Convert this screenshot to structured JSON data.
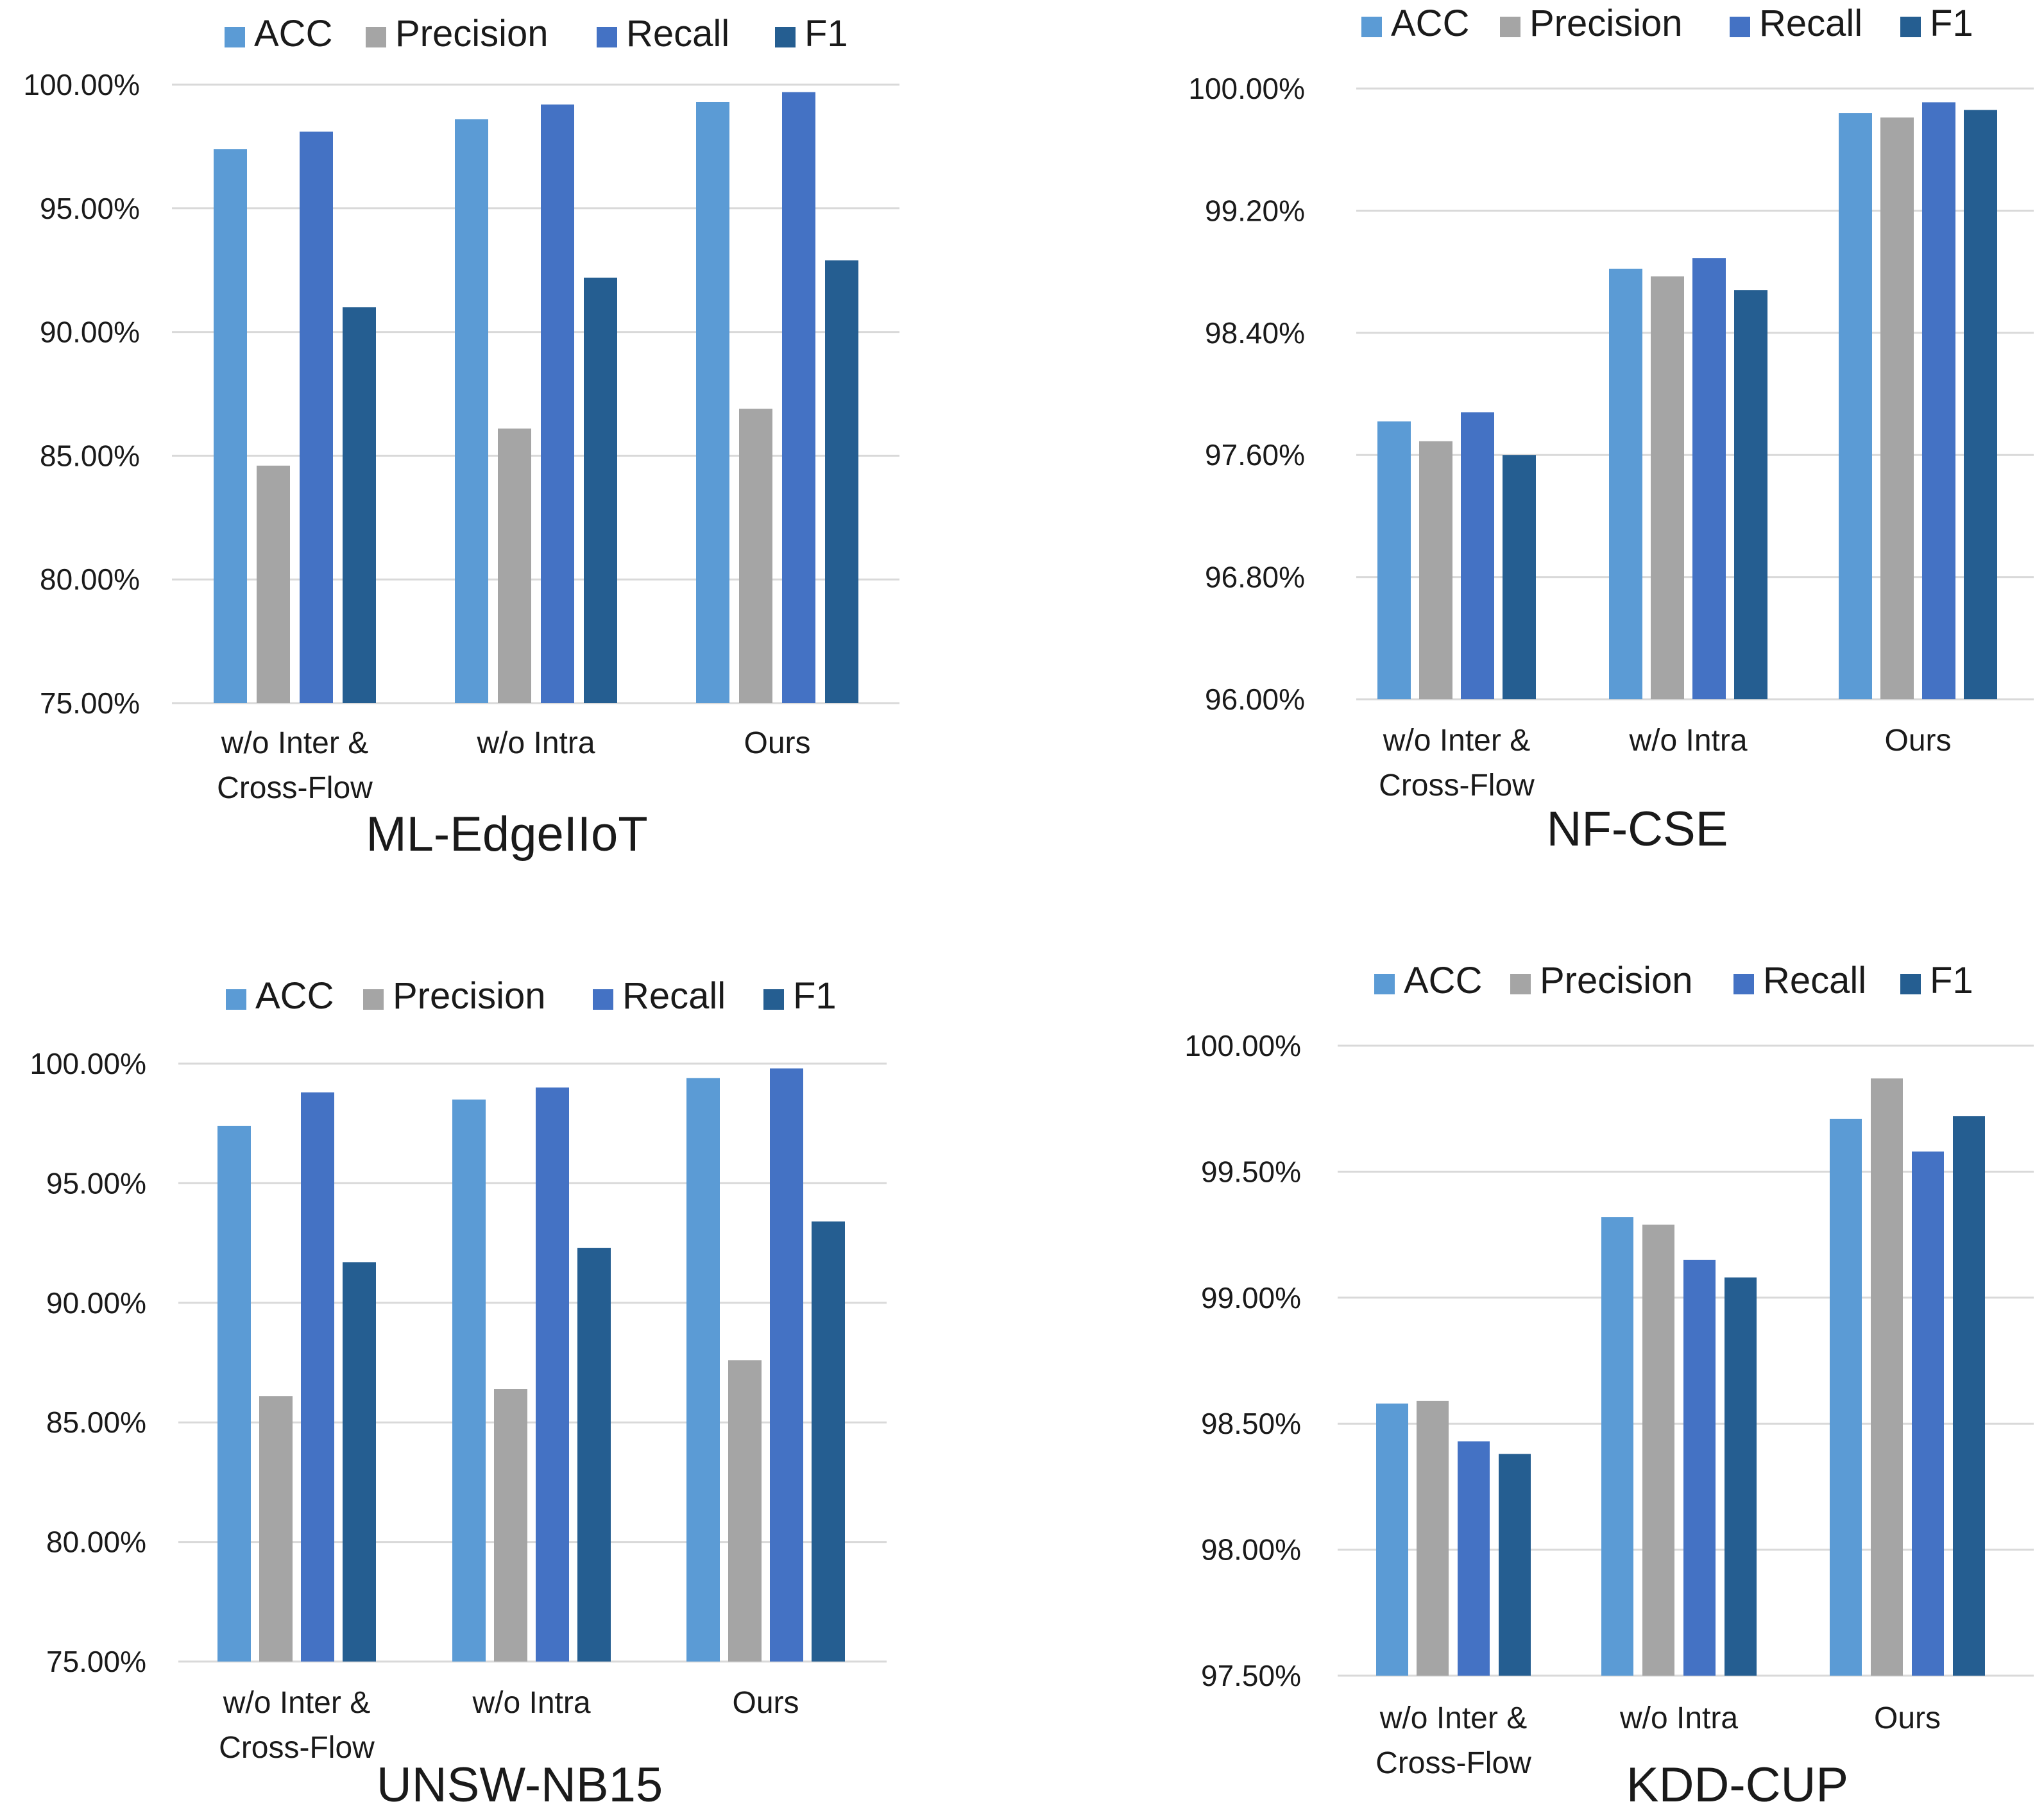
{
  "colors": {
    "ACC": "#5b9bd5",
    "Precision": "#a5a5a5",
    "Recall": "#4472c4",
    "F1": "#255e91",
    "grid": "#d9d9d9"
  },
  "chart_data": [
    {
      "type": "bar",
      "title": "ML-EdgeIIoT",
      "legend_position": "top",
      "categories": [
        "w/o Inter & Cross-Flow",
        "w/o Intra",
        "Ours"
      ],
      "category_lines": [
        [
          "w/o Inter &",
          "Cross-Flow"
        ],
        [
          "w/o Intra"
        ],
        [
          "Ours"
        ]
      ],
      "ylim": [
        75,
        100
      ],
      "yticks": [
        75,
        80,
        85,
        90,
        95,
        100
      ],
      "ytick_labels": [
        "75.00%",
        "80.00%",
        "85.00%",
        "90.00%",
        "95.00%",
        "100.00%"
      ],
      "series": [
        {
          "name": "ACC",
          "values": [
            97.4,
            98.6,
            99.3
          ]
        },
        {
          "name": "Precision",
          "values": [
            84.6,
            86.1,
            86.9
          ]
        },
        {
          "name": "Recall",
          "values": [
            98.1,
            99.2,
            99.7
          ]
        },
        {
          "name": "F1",
          "values": [
            91.0,
            92.2,
            92.9
          ]
        }
      ]
    },
    {
      "type": "bar",
      "title": "NF-CSE",
      "legend_position": "top",
      "categories": [
        "w/o Inter & Cross-Flow",
        "w/o Intra",
        "Ours"
      ],
      "category_lines": [
        [
          "w/o Inter &",
          "Cross-Flow"
        ],
        [
          "w/o Intra"
        ],
        [
          "Ours"
        ]
      ],
      "ylim": [
        96.0,
        100.0
      ],
      "yticks": [
        96.0,
        96.8,
        97.6,
        98.4,
        99.2,
        100.0
      ],
      "ytick_labels": [
        "96.00%",
        "96.80%",
        "97.60%",
        "98.40%",
        "99.20%",
        "100.00%"
      ],
      "series": [
        {
          "name": "ACC",
          "values": [
            97.82,
            98.82,
            99.84
          ]
        },
        {
          "name": "Precision",
          "values": [
            97.69,
            98.77,
            99.81
          ]
        },
        {
          "name": "Recall",
          "values": [
            97.88,
            98.89,
            99.91
          ]
        },
        {
          "name": "F1",
          "values": [
            97.6,
            98.68,
            99.86
          ]
        }
      ]
    },
    {
      "type": "bar",
      "title": "UNSW-NB15",
      "legend_position": "top",
      "categories": [
        "w/o Inter & Cross-Flow",
        "w/o Intra",
        "Ours"
      ],
      "category_lines": [
        [
          "w/o Inter &",
          "Cross-Flow"
        ],
        [
          "w/o Intra"
        ],
        [
          "Ours"
        ]
      ],
      "ylim": [
        75,
        100
      ],
      "yticks": [
        75,
        80,
        85,
        90,
        95,
        100
      ],
      "ytick_labels": [
        "75.00%",
        "80.00%",
        "85.00%",
        "90.00%",
        "95.00%",
        "100.00%"
      ],
      "series": [
        {
          "name": "ACC",
          "values": [
            97.4,
            98.5,
            99.4
          ]
        },
        {
          "name": "Precision",
          "values": [
            86.1,
            86.4,
            87.6
          ]
        },
        {
          "name": "Recall",
          "values": [
            98.8,
            99.0,
            99.8
          ]
        },
        {
          "name": "F1",
          "values": [
            91.7,
            92.3,
            93.4
          ]
        }
      ]
    },
    {
      "type": "bar",
      "title": "KDD-CUP",
      "legend_position": "top",
      "categories": [
        "w/o Inter & Cross-Flow",
        "w/o Intra",
        "Ours"
      ],
      "category_lines": [
        [
          "w/o Inter &",
          "Cross-Flow"
        ],
        [
          "w/o Intra"
        ],
        [
          "Ours"
        ]
      ],
      "ylim": [
        97.5,
        100.0
      ],
      "yticks": [
        97.5,
        98.0,
        98.5,
        99.0,
        99.5,
        100.0
      ],
      "ytick_labels": [
        "97.50%",
        "98.00%",
        "98.50%",
        "99.00%",
        "99.50%",
        "100.00%"
      ],
      "series": [
        {
          "name": "ACC",
          "values": [
            98.58,
            99.32,
            99.71
          ]
        },
        {
          "name": "Precision",
          "values": [
            98.59,
            99.29,
            99.87
          ]
        },
        {
          "name": "Recall",
          "values": [
            98.43,
            99.15,
            99.58
          ]
        },
        {
          "name": "F1",
          "values": [
            98.38,
            99.08,
            99.72
          ]
        }
      ]
    }
  ]
}
